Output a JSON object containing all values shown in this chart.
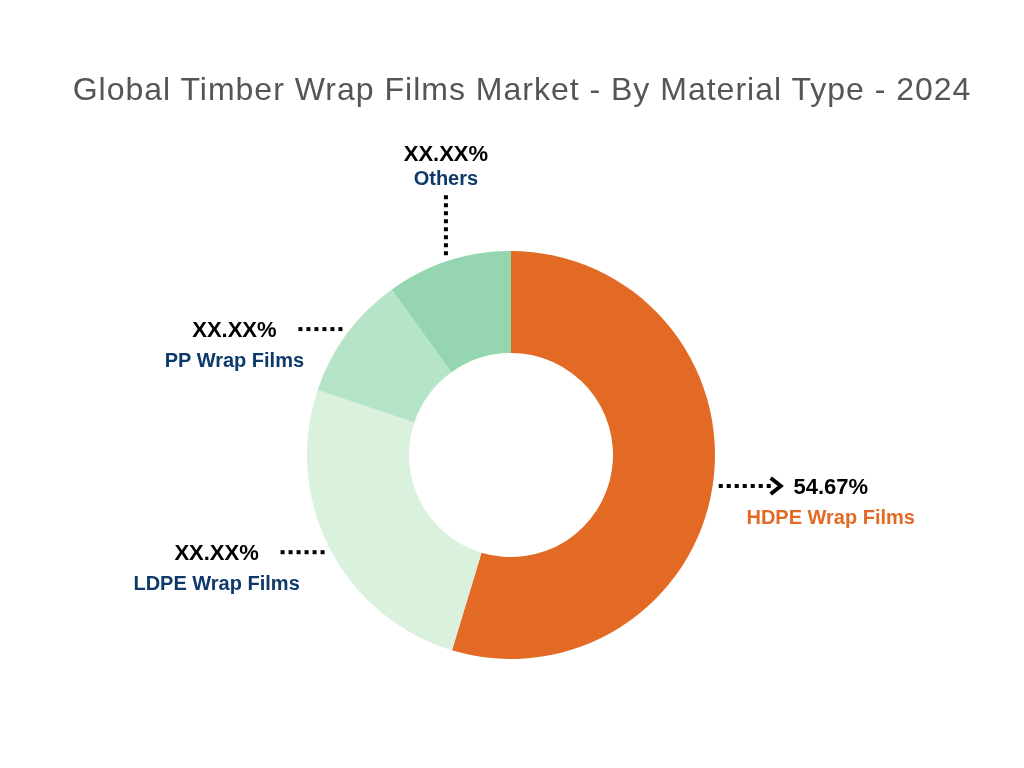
{
  "chart_data": {
    "type": "donut",
    "title": "Global Timber Wrap Films Market - By Material Type - 2024",
    "categories": [
      "HDPE Wrap Films",
      "LDPE Wrap Films",
      "PP Wrap Films",
      "Others"
    ],
    "values": [
      54.67,
      25.5,
      9.9,
      9.93
    ],
    "colors": [
      "#e36a25",
      "#daf2dd",
      "#b5e4c8",
      "#95d6b0"
    ],
    "value_labels": [
      "54.67%",
      "XX.XX%",
      "XX.XX%",
      "XX.XX%"
    ]
  }
}
